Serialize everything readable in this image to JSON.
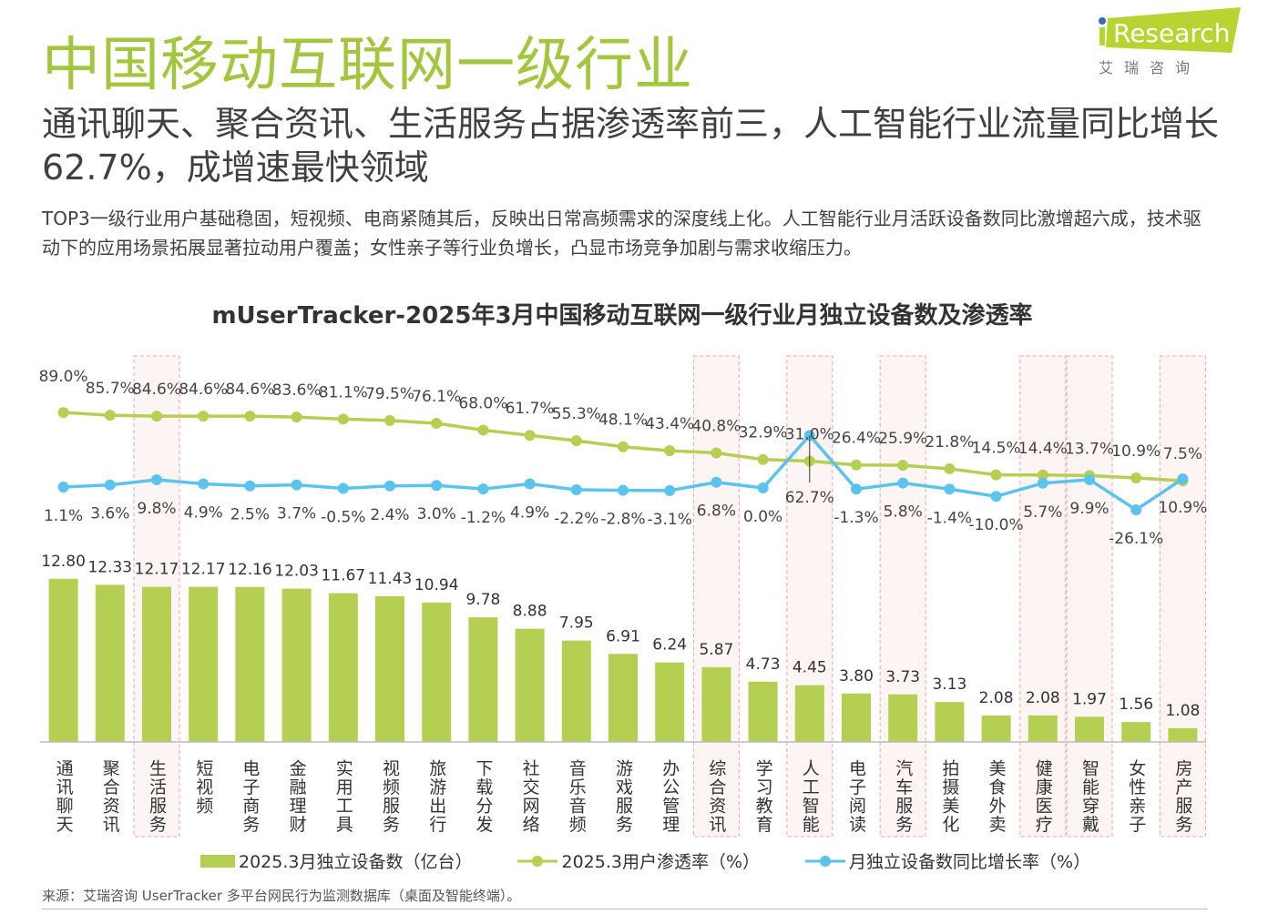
{
  "header": {
    "title": "中国移动互联网一级行业",
    "subtitle": "通讯聊天、聚合资讯、生活服务占据渗透率前三，人工智能行业流量同比增长62.7%，成增速最快领域",
    "description": "TOP3一级行业用户基础稳固，短视频、电商紧随其后，反映出日常高频需求的深度线上化。人工智能行业月活跃设备数同比激增超六成，技术驱动下的应用场景拓展显著拉动用户覆盖；女性亲子等行业负增长，凸显市场竞争加剧与需求收缩压力。",
    "logo_text": "iResearch",
    "logo_cn": "艾 瑞 咨 询"
  },
  "source": "来源：艾瑞咨询 UserTracker 多平台网民行为监测数据库（桌面及智能终端）。",
  "colors": {
    "bar": "#b5cf52",
    "penetration": "#b5cf52",
    "growth": "#5bc3ec",
    "highlight_fill": "#fdf4f4",
    "highlight_border": "#f0a4a4",
    "title": "#a2c63e"
  },
  "chart_data": {
    "type": "bar+line",
    "title": "mUserTracker-2025年3月中国移动互联网一级行业月独立设备数及渗透率",
    "categories": [
      "通讯聊天",
      "聚合资讯",
      "生活服务",
      "短视频",
      "电子商务",
      "金融理财",
      "实用工具",
      "视频服务",
      "旅游出行",
      "下载分发",
      "社交网络",
      "音乐音频",
      "游戏服务",
      "办公管理",
      "综合资讯",
      "学习教育",
      "人工智能",
      "电子阅读",
      "汽车服务",
      "拍摄美化",
      "美食外卖",
      "健康医疗",
      "智能穿戴",
      "女性亲子",
      "房产服务"
    ],
    "highlighted": [
      "生活服务",
      "综合资讯",
      "人工智能",
      "汽车服务",
      "健康医疗",
      "智能穿戴",
      "房产服务"
    ],
    "series": [
      {
        "name": "2025.3月独立设备数（亿台）",
        "type": "bar",
        "values": [
          12.8,
          12.33,
          12.17,
          12.17,
          12.16,
          12.03,
          11.67,
          11.43,
          10.94,
          9.78,
          8.88,
          7.95,
          6.91,
          6.24,
          5.87,
          4.73,
          4.45,
          3.8,
          3.73,
          3.13,
          2.08,
          2.08,
          1.97,
          1.56,
          1.08
        ]
      },
      {
        "name": "2025.3用户渗透率（%）",
        "type": "line",
        "values": [
          89.0,
          85.7,
          84.6,
          84.6,
          84.6,
          83.6,
          81.1,
          79.5,
          76.1,
          68.0,
          61.7,
          55.3,
          48.1,
          43.4,
          40.8,
          32.9,
          31.0,
          26.4,
          25.9,
          21.8,
          14.5,
          14.4,
          13.7,
          10.9,
          7.5
        ]
      },
      {
        "name": "月独立设备数同比增长率（%）",
        "type": "line",
        "values": [
          1.1,
          3.6,
          9.8,
          4.9,
          2.5,
          3.7,
          -0.5,
          2.4,
          3.0,
          -1.2,
          4.9,
          -2.2,
          -2.8,
          -3.1,
          6.8,
          0.0,
          62.7,
          -1.3,
          5.8,
          -1.4,
          -10.0,
          5.7,
          9.9,
          -26.1,
          10.9
        ]
      }
    ],
    "legend": "bottom"
  }
}
